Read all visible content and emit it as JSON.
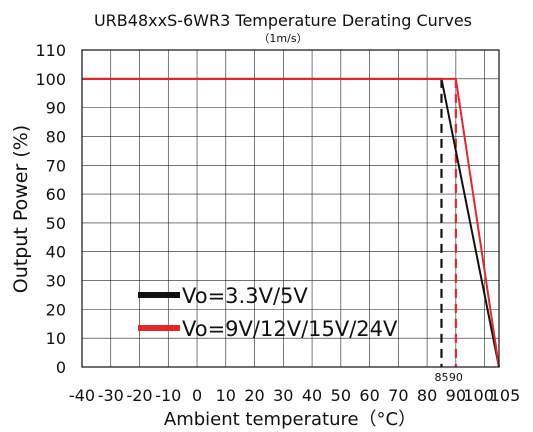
{
  "chart_data": {
    "type": "line",
    "title": "URB48xxS-6WR3 Temperature Derating Curves",
    "subtitle": "（1m/s）",
    "xlabel": "Ambient temperature（°C）",
    "ylabel": "Output Power (%)",
    "xlim": [
      -40,
      105
    ],
    "ylim": [
      0,
      110
    ],
    "x_ticks": [
      -40,
      -30,
      -20,
      -10,
      0,
      10,
      20,
      30,
      40,
      50,
      60,
      70,
      80,
      90,
      100,
      105
    ],
    "x_tick_labels": [
      "-40",
      "-30",
      "-20",
      "-10",
      "0",
      "10",
      "20",
      "30",
      "40",
      "50",
      "60",
      "70",
      "80",
      "90",
      "100",
      "105"
    ],
    "y_ticks": [
      0,
      10,
      20,
      30,
      40,
      50,
      60,
      70,
      80,
      90,
      100,
      110
    ],
    "y_tick_labels": [
      "0",
      "10",
      "20",
      "30",
      "40",
      "50",
      "60",
      "70",
      "80",
      "90",
      "100",
      "110"
    ],
    "grid": true,
    "legend_position": "bottom-left",
    "series": [
      {
        "name": "Vo=3.3V/5V",
        "color": "#111111",
        "x": [
          -40,
          85,
          105
        ],
        "y": [
          100,
          100,
          0
        ]
      },
      {
        "name": "Vo=9V/12V/15V/24V",
        "color": "#e8262c",
        "x": [
          -40,
          90,
          105
        ],
        "y": [
          100,
          100,
          0
        ]
      }
    ],
    "markers": [
      {
        "x": 85,
        "label": "85",
        "color": "#111111"
      },
      {
        "x": 90,
        "label": "90",
        "color": "#e8262c"
      }
    ]
  }
}
